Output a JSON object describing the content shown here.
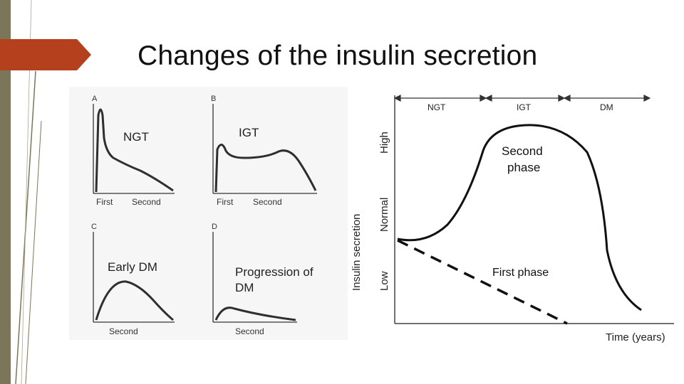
{
  "slide": {
    "title": "Changes of the insulin secretion"
  },
  "colors": {
    "sidebar": "#7b7659",
    "title_arrow": "#b5401e",
    "curves": "#2f2f2f"
  },
  "left_panel": {
    "panels": [
      {
        "letter": "A",
        "name": "NGT",
        "x_labels": [
          "First",
          "Second"
        ]
      },
      {
        "letter": "B",
        "name": "IGT",
        "x_labels": [
          "First",
          "Second"
        ]
      },
      {
        "letter": "C",
        "name": "Early DM",
        "x_labels": [
          "Second"
        ]
      },
      {
        "letter": "D",
        "name": "Progression of DM",
        "name_lines": [
          "Progression of",
          "DM"
        ],
        "x_labels": [
          "Second"
        ]
      }
    ]
  },
  "right_diagram": {
    "y_axis_title": "Insulin secretion",
    "y_levels": [
      "Low",
      "Normal",
      "High"
    ],
    "stages": [
      "NGT",
      "IGT",
      "DM"
    ],
    "x_axis_title": "Time (years)",
    "curve_labels": {
      "second_phase_lines": [
        "Second",
        "phase"
      ],
      "first_phase": "First phase"
    }
  }
}
